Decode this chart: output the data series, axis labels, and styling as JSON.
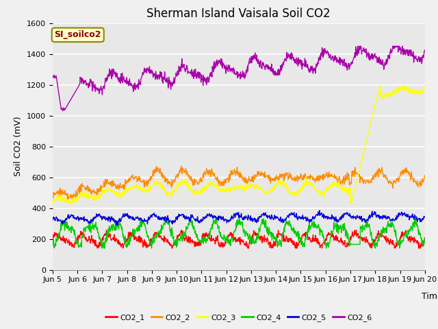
{
  "title": "Sherman Island Vaisala Soil CO2",
  "ylabel": "Soil CO2 (mV)",
  "xlabel": "Time",
  "legend_label": "SI_soilco2",
  "series_names": [
    "CO2_1",
    "CO2_2",
    "CO2_3",
    "CO2_4",
    "CO2_5",
    "CO2_6"
  ],
  "series_colors": [
    "#ff0000",
    "#ff8c00",
    "#ffff00",
    "#00cc00",
    "#0000dd",
    "#aa00aa"
  ],
  "xlim_days": [
    5.0,
    20.0
  ],
  "ylim": [
    0,
    1600
  ],
  "yticks": [
    0,
    200,
    400,
    600,
    800,
    1000,
    1200,
    1400,
    1600
  ],
  "xtick_labels": [
    "Jun 5",
    "Jun 6",
    "Jun 7",
    "Jun 8",
    "Jun 9",
    "Jun 10",
    "Jun 11",
    "Jun 12",
    "Jun 13",
    "Jun 14",
    "Jun 15",
    "Jun 16",
    "Jun 17",
    "Jun 18",
    "Jun 19",
    "Jun 20"
  ],
  "xtick_positions": [
    5,
    6,
    7,
    8,
    9,
    10,
    11,
    12,
    13,
    14,
    15,
    16,
    17,
    18,
    19,
    20
  ],
  "fig_bg_color": "#f0f0f0",
  "plot_bg_color": "#e8e8e8",
  "n_points": 1080,
  "seed": 42
}
